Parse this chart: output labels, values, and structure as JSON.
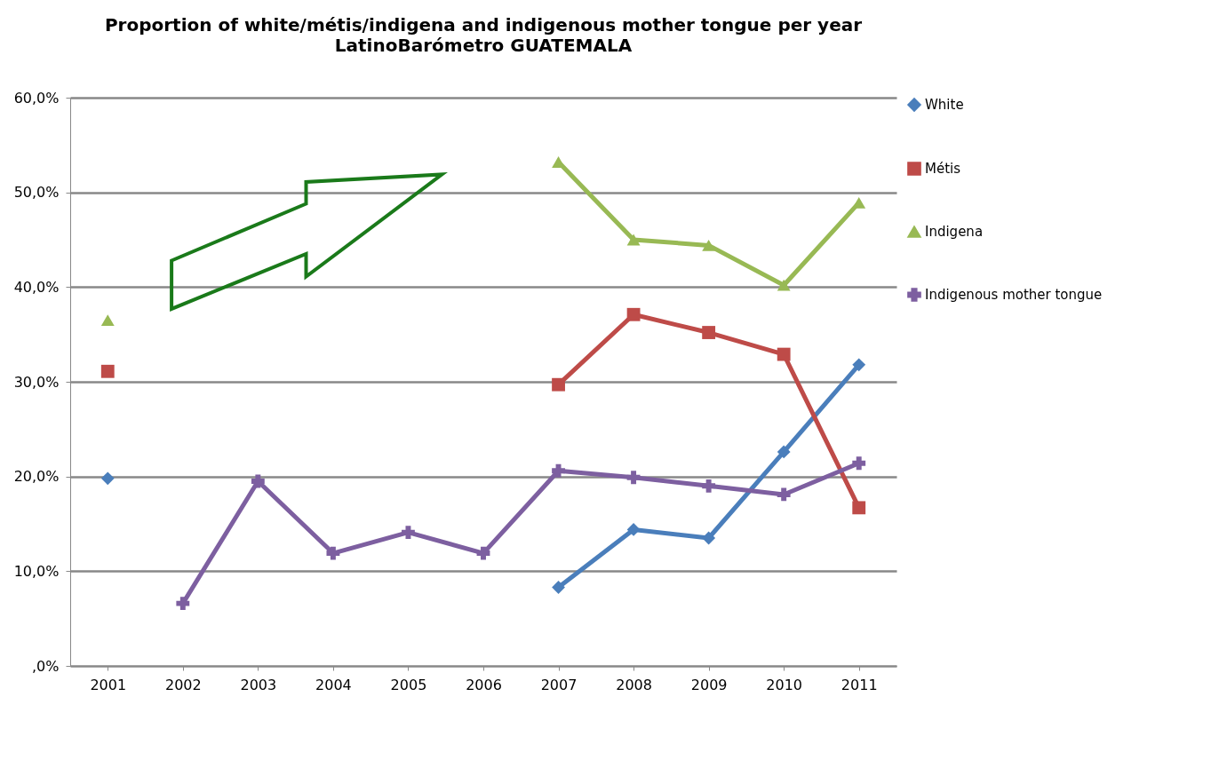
{
  "chart_data": {
    "type": "line",
    "title": "Proportion of white/métis/indigena and indigenous mother tongue per year",
    "subtitle": "LatinoBarómetro GUATEMALA",
    "categories": [
      "2001",
      "2002",
      "2003",
      "2004",
      "2005",
      "2006",
      "2007",
      "2008",
      "2009",
      "2010",
      "2011"
    ],
    "series": [
      {
        "name": "White",
        "color": "#4a7ebb",
        "marker": "diamond",
        "values": [
          19.8,
          null,
          null,
          null,
          null,
          null,
          8.3,
          14.4,
          13.5,
          22.6,
          31.8
        ]
      },
      {
        "name": "Métis",
        "color": "#be4b48",
        "marker": "square",
        "values": [
          31.1,
          null,
          null,
          null,
          null,
          null,
          29.7,
          37.1,
          35.2,
          32.9,
          16.7
        ]
      },
      {
        "name": "Indigena",
        "color": "#98b954",
        "marker": "triangle",
        "values": [
          36.5,
          null,
          null,
          null,
          null,
          null,
          53.2,
          45.0,
          44.4,
          40.2,
          48.9
        ]
      },
      {
        "name": "Indigenous mother tongue",
        "color": "#7d5fa0",
        "marker": "cross",
        "values": [
          null,
          6.6,
          19.5,
          11.9,
          14.1,
          11.9,
          20.6,
          19.9,
          19.0,
          18.1,
          21.4
        ]
      }
    ],
    "ylim": [
      0,
      60
    ],
    "yticks": [
      {
        "value": 0,
        "label": ",0%"
      },
      {
        "value": 10,
        "label": "10,0%"
      },
      {
        "value": 20,
        "label": "20,0%"
      },
      {
        "value": 30,
        "label": "30,0%"
      },
      {
        "value": 40,
        "label": "40,0%"
      },
      {
        "value": 50,
        "label": "50,0%"
      },
      {
        "value": 60,
        "label": "60,0%"
      }
    ],
    "grid": "y",
    "legend": "right"
  }
}
